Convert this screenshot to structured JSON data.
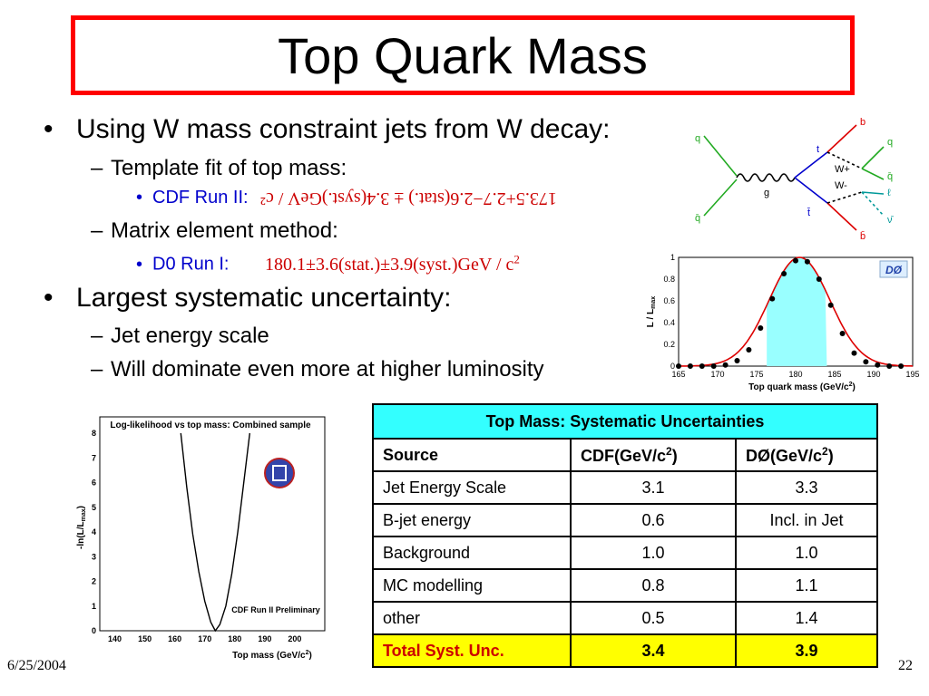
{
  "title": "Top Quark Mass",
  "bullets": {
    "b1": "Using W mass constraint jets from W decay:",
    "b1_1": "Template fit of top mass:",
    "b1_1_1_label": "CDF Run II:",
    "b1_1_1_value": "173.5+2.7−2.6(stat.) ± 3.4(syst.)GeV / c²",
    "b1_2": "Matrix element method:",
    "b1_2_1_label": "D0 Run I:",
    "b1_2_1_value": "180.1±3.6(stat.)±3.9(syst.)GeV / c",
    "b1_2_1_sup": "2",
    "b2": "Largest systematic uncertainty:",
    "b2_1": "Jet energy scale",
    "b2_2": "Will dominate even more at higher luminosity"
  },
  "feynman": {
    "labels": [
      "q",
      "q̄",
      "g",
      "t",
      "t̄",
      "W+",
      "W-",
      "b",
      "q",
      "q̄",
      "ℓ",
      "ν̄",
      "b̄"
    ]
  },
  "d0_plot": {
    "ylabel": "L / L",
    "ylabel_sub": "max",
    "xlabel": "Top quark mass (GeV/c",
    "xlabel_sup": "2",
    "xlabel_end": ")",
    "logo": "DØ",
    "colors": {
      "fill": "#99ffff",
      "curve": "#dd0000",
      "points": "#000000"
    }
  },
  "cdf_plot": {
    "title": "Log-likelihood vs top mass: Combined sample",
    "ylabel": "-ln(L/L",
    "ylabel_sub": "max",
    "ylabel_end": ")",
    "xlabel": "Top mass (GeV/c",
    "xlabel_sup": "2",
    "xlabel_end": ")",
    "annotation": "CDF Run II Preliminary"
  },
  "chart_data": [
    {
      "type": "scatter",
      "title": "",
      "xlabel": "Top quark mass (GeV/c2)",
      "ylabel": "L / Lmax",
      "xlim": [
        165,
        195
      ],
      "ylim": [
        0,
        1
      ],
      "xticks": [
        "165",
        "170",
        "175",
        "180",
        "185",
        "190",
        "195"
      ],
      "yticks": [
        "0",
        "0.2",
        "0.4",
        "0.6",
        "0.8",
        "1"
      ],
      "x": [
        165,
        166.5,
        168,
        169.5,
        171,
        172.5,
        174,
        175.5,
        177,
        178.5,
        180,
        181.5,
        183,
        184.5,
        186,
        187.5,
        189,
        190.5,
        192,
        193.5
      ],
      "y": [
        0.0,
        0.0,
        0.0,
        0.0,
        0.01,
        0.05,
        0.15,
        0.35,
        0.62,
        0.85,
        0.97,
        0.96,
        0.8,
        0.56,
        0.3,
        0.12,
        0.04,
        0.01,
        0.0,
        0.0
      ],
      "shaded_range": [
        176.3,
        184
      ]
    },
    {
      "type": "line",
      "title": "Log-likelihood vs top mass: Combined sample",
      "xlabel": "Top mass (GeV/c2)",
      "ylabel": "-ln(L/Lmax)",
      "xlim": [
        135,
        210
      ],
      "ylim": [
        0,
        8
      ],
      "xticks": [
        "140",
        "150",
        "160",
        "170",
        "180",
        "190",
        "200"
      ],
      "yticks": [
        "0",
        "1",
        "2",
        "3",
        "4",
        "5",
        "6",
        "7",
        "8"
      ],
      "x": [
        162,
        164,
        166,
        168,
        170,
        172,
        173.5,
        175,
        177,
        179,
        181,
        183,
        185
      ],
      "y": [
        8.0,
        5.8,
        3.9,
        2.4,
        1.2,
        0.35,
        0.0,
        0.25,
        1.0,
        2.3,
        4.0,
        6.0,
        8.0
      ]
    },
    {
      "type": "table",
      "title": "Top Mass: Systematic Uncertainties",
      "columns": [
        "Source",
        "CDF(GeV/c2)",
        "DØ(GeV/c2)"
      ],
      "rows": [
        [
          "Jet Energy Scale",
          "3.1",
          "3.3"
        ],
        [
          "B-jet energy",
          "0.6",
          "Incl. in Jet"
        ],
        [
          "Background",
          "1.0",
          "1.0"
        ],
        [
          "MC modelling",
          "0.8",
          "1.1"
        ],
        [
          "other",
          "0.5",
          "1.4"
        ],
        [
          "Total Syst. Unc.",
          "3.4",
          "3.9"
        ]
      ]
    }
  ],
  "table": {
    "caption": "Top Mass: Systematic Uncertainties",
    "h_source": "Source",
    "h_cdf": "CDF(GeV/c",
    "h_d0": "DØ(GeV/c",
    "sup": "2",
    "close": ")",
    "rows": [
      {
        "src": "Jet Energy Scale",
        "cdf": "3.1",
        "d0": "3.3"
      },
      {
        "src": "B-jet energy",
        "cdf": "0.6",
        "d0": "Incl. in Jet"
      },
      {
        "src": "Background",
        "cdf": "1.0",
        "d0": "1.0"
      },
      {
        "src": "MC modelling",
        "cdf": "0.8",
        "d0": "1.1"
      },
      {
        "src": "other",
        "cdf": "0.5",
        "d0": "1.4"
      }
    ],
    "total": {
      "src": "Total Syst. Unc.",
      "cdf": "3.4",
      "d0": "3.9"
    }
  },
  "footer": {
    "date": "6/25/2004",
    "page": "22"
  }
}
